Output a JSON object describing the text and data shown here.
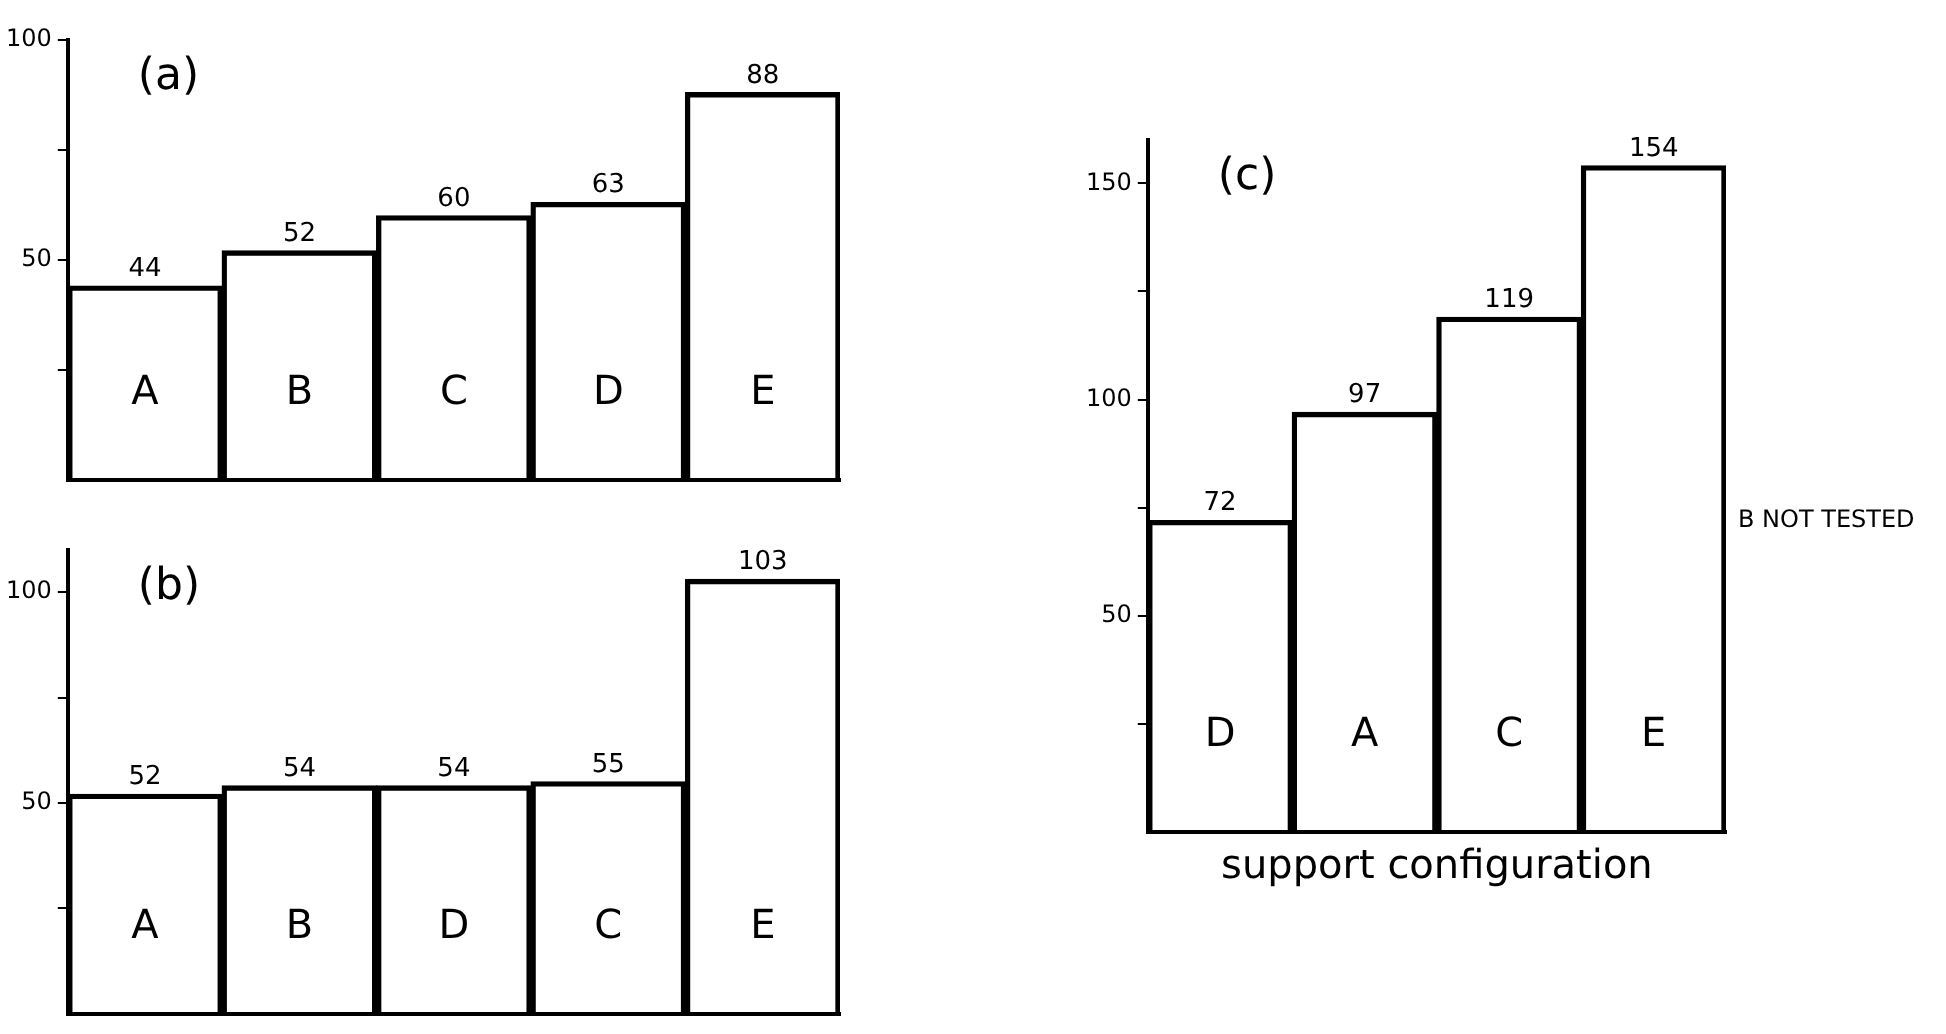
{
  "chart_data": [
    {
      "type": "bar",
      "title": "(a)",
      "categories": [
        "A",
        "B",
        "C",
        "D",
        "E"
      ],
      "values": [
        44,
        52,
        60,
        63,
        88
      ],
      "color": "#000000",
      "ylim": [
        0,
        100
      ],
      "yticks": [
        {
          "value": 25,
          "label": null
        },
        50,
        {
          "value": 75,
          "label": null
        },
        100
      ],
      "data_labels": true,
      "grid": false,
      "legend": false
    },
    {
      "type": "bar",
      "title": "(b)",
      "categories": [
        "A",
        "B",
        "D",
        "C",
        "E"
      ],
      "values": [
        52,
        54,
        54,
        55,
        103
      ],
      "color": "#000000",
      "ylim": [
        0,
        110
      ],
      "yticks": [
        {
          "value": 25,
          "label": null
        },
        50,
        {
          "value": 75,
          "label": null
        },
        100
      ],
      "data_labels": true,
      "grid": false,
      "legend": false
    },
    {
      "type": "bar",
      "title": "(c)",
      "xlabel": "support configuration",
      "categories": [
        "D",
        "A",
        "C",
        "E"
      ],
      "values": [
        72,
        97,
        119,
        154
      ],
      "color": "#000000",
      "ylim": [
        0,
        160
      ],
      "yticks": [
        {
          "value": 25,
          "label": null
        },
        50,
        {
          "value": 75,
          "label": null
        },
        100,
        {
          "value": 125,
          "label": null
        },
        150
      ],
      "data_labels": true,
      "grid": false,
      "legend": false,
      "annotations": [
        "B NOT TESTED"
      ]
    }
  ]
}
